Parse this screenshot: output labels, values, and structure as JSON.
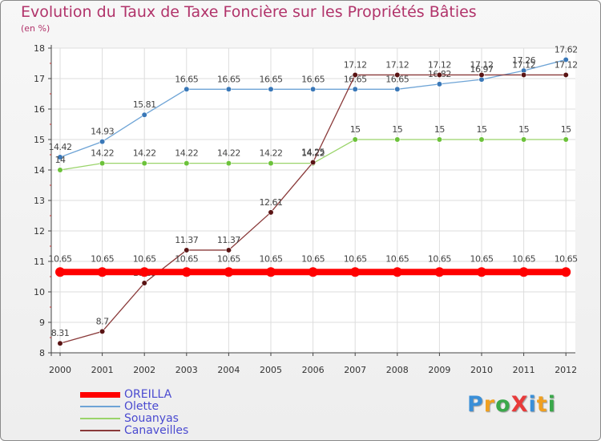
{
  "title": "Evolution du Taux de Taxe Foncière sur les Propriétés Bâties",
  "subtitle": "(en %)",
  "logo_text": "ProXiti",
  "chart_data": {
    "type": "line",
    "title": "Evolution du Taux de Taxe Foncière sur les Propriétés Bâties",
    "ylabel": "(en %)",
    "xlabel": "",
    "ylim": [
      8,
      18
    ],
    "yticks": [
      8,
      9,
      10,
      11,
      12,
      13,
      14,
      15,
      16,
      17,
      18
    ],
    "x": [
      "2000",
      "2001",
      "2002",
      "2003",
      "2004",
      "2005",
      "2006",
      "2007",
      "2008",
      "2009",
      "2010",
      "2011",
      "2012"
    ],
    "series": [
      {
        "name": "Olette",
        "color": "#6ea4d6",
        "marker": "#3a78b8",
        "values": [
          14.42,
          14.93,
          15.81,
          16.65,
          16.65,
          16.65,
          16.65,
          16.65,
          16.65,
          16.82,
          16.97,
          17.26,
          17.62
        ],
        "labels": [
          "14.42",
          "14.93",
          "15.81",
          "16.65",
          "16.65",
          "16.65",
          "16.65",
          "16.65",
          "16.65",
          "16.82",
          "16.97",
          "17.26",
          "17.62"
        ]
      },
      {
        "name": "Souanyas",
        "color": "#9ad46a",
        "marker": "#6cc23a",
        "values": [
          14,
          14.22,
          14.22,
          14.22,
          14.22,
          14.22,
          14.22,
          15,
          15,
          15,
          15,
          15,
          15
        ],
        "labels": [
          "14",
          "14.22",
          "14.22",
          "14.22",
          "14.22",
          "14.22",
          "14.22",
          "15",
          "15",
          "15",
          "15",
          "15",
          "15"
        ]
      },
      {
        "name": "Canaveilles",
        "color": "#8a3a3a",
        "marker": "#5a1414",
        "values": [
          8.31,
          8.7,
          10.29,
          11.37,
          11.37,
          12.61,
          14.25,
          17.12,
          17.12,
          17.12,
          17.12,
          17.12,
          17.12
        ],
        "labels": [
          "8.31",
          "8.7",
          "10.29",
          "11.37",
          "11.37",
          "12.61",
          "14.25",
          "17.12",
          "17.12",
          "17.12",
          "17.12",
          "17.12",
          "17.12"
        ]
      },
      {
        "name": "OREILLA",
        "color": "#ff0000",
        "marker": "#ff0000",
        "values": [
          10.65,
          10.65,
          10.65,
          10.65,
          10.65,
          10.65,
          10.65,
          10.65,
          10.65,
          10.65,
          10.65,
          10.65,
          10.65
        ],
        "labels": [
          "10.65",
          "10.65",
          "10.65",
          "10.65",
          "10.65",
          "10.65",
          "10.65",
          "10.65",
          "10.65",
          "10.65",
          "10.65",
          "10.65",
          "10.65"
        ]
      }
    ],
    "legend": {
      "placement": "bottom-left",
      "items": [
        {
          "name": "OREILLA",
          "color": "#ff0000",
          "weight": "thick"
        },
        {
          "name": "Olette",
          "color": "#6ea4d6",
          "weight": "thin"
        },
        {
          "name": "Souanyas",
          "color": "#9ad46a",
          "weight": "thin"
        },
        {
          "name": "Canaveilles",
          "color": "#8a3a3a",
          "weight": "thin"
        }
      ]
    }
  }
}
